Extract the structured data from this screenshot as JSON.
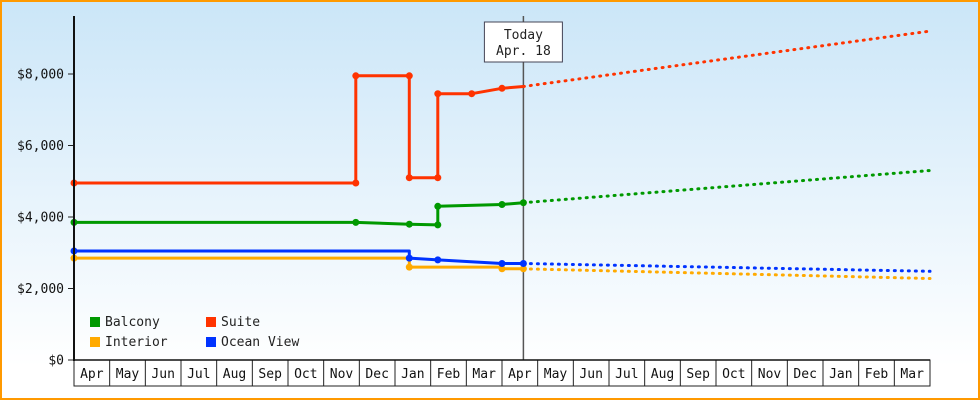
{
  "frame": {
    "border_color": "#ff9900",
    "bg_top": "#cbe6f8",
    "bg_bottom": "#ffffff"
  },
  "chart_data": {
    "type": "line",
    "title": "",
    "xlabel": "",
    "ylabel": "",
    "units": "USD",
    "x_axis": {
      "tick_labels": [
        "Apr",
        "May",
        "Jun",
        "Jul",
        "Aug",
        "Sep",
        "Oct",
        "Nov",
        "Dec",
        "Jan",
        "Feb",
        "Mar",
        "Apr",
        "May",
        "Jun",
        "Jul",
        "Aug",
        "Sep",
        "Oct",
        "Nov",
        "Dec",
        "Jan",
        "Feb",
        "Mar"
      ]
    },
    "y_axis": {
      "tick_labels": [
        "$0",
        "$2,000",
        "$4,000",
        "$6,000",
        "$8,000"
      ],
      "tick_values": [
        0,
        2000,
        4000,
        6000,
        8000
      ],
      "range": [
        0,
        9600
      ]
    },
    "today_marker": {
      "line1": "Today",
      "line2": "Apr. 18",
      "month_position": 12.6
    },
    "series": [
      {
        "name": "Balcony",
        "color": "#009900",
        "solid": [
          [
            0,
            3850
          ],
          [
            7.9,
            3850
          ],
          [
            9.4,
            3800
          ],
          [
            10.2,
            3780
          ],
          [
            10.2,
            4300
          ],
          [
            12,
            4350
          ],
          [
            12.6,
            4400
          ]
        ],
        "dotted": [
          [
            12.6,
            4400
          ],
          [
            24,
            5300
          ]
        ],
        "markers": [
          [
            0,
            3850
          ],
          [
            7.9,
            3850
          ],
          [
            9.4,
            3800
          ],
          [
            10.2,
            3780
          ],
          [
            10.2,
            4300
          ],
          [
            12,
            4350
          ],
          [
            12.6,
            4400
          ]
        ]
      },
      {
        "name": "Suite",
        "color": "#ff3300",
        "solid": [
          [
            0,
            4950
          ],
          [
            7.9,
            4950
          ],
          [
            7.9,
            7950
          ],
          [
            9.4,
            7950
          ],
          [
            9.4,
            5100
          ],
          [
            10.2,
            5100
          ],
          [
            10.2,
            7450
          ],
          [
            11.15,
            7450
          ],
          [
            12,
            7600
          ],
          [
            12.6,
            7650
          ]
        ],
        "dotted": [
          [
            12.6,
            7650
          ],
          [
            24,
            9200
          ]
        ],
        "markers": [
          [
            0,
            4950
          ],
          [
            7.9,
            4950
          ],
          [
            7.9,
            7950
          ],
          [
            9.4,
            7950
          ],
          [
            9.4,
            5100
          ],
          [
            10.2,
            5100
          ],
          [
            10.2,
            7450
          ],
          [
            11.15,
            7450
          ],
          [
            12,
            7600
          ]
        ]
      },
      {
        "name": "Interior",
        "color": "#ffaa00",
        "solid": [
          [
            0,
            2850
          ],
          [
            9.4,
            2850
          ],
          [
            9.4,
            2600
          ],
          [
            12,
            2600
          ],
          [
            12,
            2550
          ],
          [
            12.6,
            2550
          ]
        ],
        "dotted": [
          [
            12.6,
            2550
          ],
          [
            24,
            2280
          ]
        ],
        "markers": [
          [
            0,
            2850
          ],
          [
            9.4,
            2600
          ],
          [
            12,
            2550
          ],
          [
            12.6,
            2550
          ]
        ]
      },
      {
        "name": "Ocean View",
        "color": "#0033ff",
        "solid": [
          [
            0,
            3050
          ],
          [
            9.4,
            3050
          ],
          [
            9.4,
            2850
          ],
          [
            10.2,
            2800
          ],
          [
            12,
            2700
          ],
          [
            12.6,
            2700
          ]
        ],
        "dotted": [
          [
            12.6,
            2700
          ],
          [
            24,
            2480
          ]
        ],
        "markers": [
          [
            0,
            3050
          ],
          [
            9.4,
            2850
          ],
          [
            10.2,
            2800
          ],
          [
            12,
            2700
          ],
          [
            12.6,
            2700
          ]
        ]
      }
    ],
    "legend": {
      "position": "bottom-left",
      "entries": [
        "Balcony",
        "Suite",
        "Interior",
        "Ocean View"
      ]
    }
  }
}
